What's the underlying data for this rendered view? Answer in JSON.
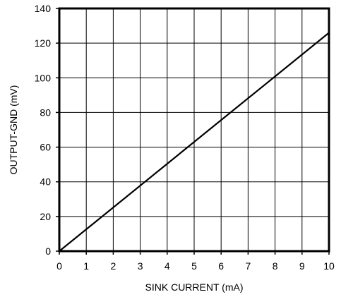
{
  "chart_data": {
    "type": "line",
    "title": "",
    "xlabel": "SINK CURRENT (mA)",
    "ylabel": "OUTPUT-GND (mV)",
    "xlim": [
      0,
      10
    ],
    "ylim": [
      0,
      140
    ],
    "x_ticks": [
      0,
      1,
      2,
      3,
      4,
      5,
      6,
      7,
      8,
      9,
      10
    ],
    "y_ticks": [
      0,
      20,
      40,
      60,
      80,
      100,
      120,
      140
    ],
    "grid": true,
    "legend": "none",
    "series": [
      {
        "x": [
          0,
          10
        ],
        "y": [
          0,
          126
        ],
        "color": "#000000"
      }
    ]
  }
}
